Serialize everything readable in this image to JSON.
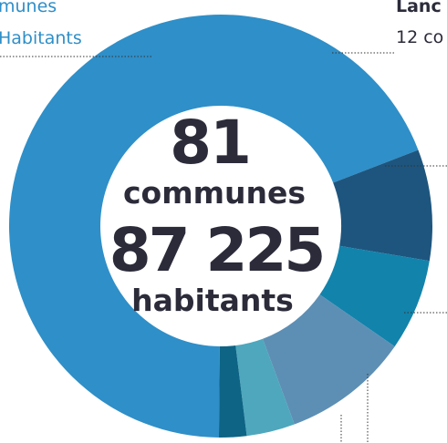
{
  "labels": {
    "left_line1": "munes",
    "left_line2": "Habitants",
    "right_line1": "Lanc",
    "right_line2": "12 co"
  },
  "center": {
    "communes_count": "81",
    "communes_label": "communes",
    "habitants_count": "87 225",
    "habitants_label": "habitants"
  },
  "chart_data": {
    "type": "pie",
    "variant": "donut",
    "title": "",
    "slices": [
      {
        "value": 69.0,
        "color": "#2f8fc8"
      },
      {
        "value": 8.5,
        "color": "#1e557e"
      },
      {
        "value": 7.0,
        "color": "#1283ab"
      },
      {
        "value": 9.7,
        "color": "#5d8fb4"
      },
      {
        "value": 3.7,
        "color": "#4ea7bd"
      },
      {
        "value": 2.1,
        "color": "#0d6485"
      }
    ]
  },
  "colors": {
    "primary": "#2f8fc8",
    "text_dark": "#2b2b3a",
    "leader_line": "#333333"
  }
}
